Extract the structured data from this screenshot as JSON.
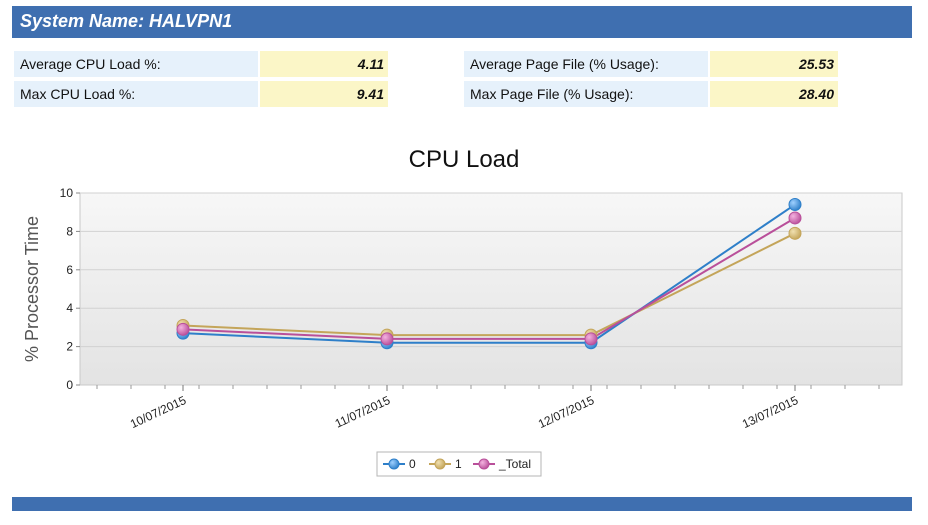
{
  "header": {
    "title": "System Name: HALVPN1"
  },
  "stats": {
    "avg_cpu": {
      "label": "Average CPU Load %:",
      "value": "4.11"
    },
    "max_cpu": {
      "label": "Max CPU Load %:",
      "value": "9.41"
    },
    "avg_page": {
      "label": "Average Page File (% Usage):",
      "value": "25.53"
    },
    "max_page": {
      "label": "Max Page File (% Usage):",
      "value": "28.40"
    }
  },
  "colors": {
    "header": "#3f6fb0",
    "series_0": "#2e7fc9",
    "series_1": "#c4a55a",
    "series_total": "#b94f9a"
  },
  "chart_data": {
    "type": "line",
    "title": "CPU Load",
    "xlabel": "",
    "ylabel": "% Processor Time",
    "categories": [
      "10/07/2015",
      "11/07/2015",
      "12/07/2015",
      "13/07/2015"
    ],
    "ylim": [
      0,
      10
    ],
    "yticks": [
      "0",
      "2",
      "4",
      "6",
      "8",
      "10"
    ],
    "grid": true,
    "legend": "bottom-center",
    "series": [
      {
        "name": "0",
        "values": [
          2.7,
          2.2,
          2.2,
          9.4
        ]
      },
      {
        "name": "1",
        "values": [
          3.1,
          2.6,
          2.6,
          7.9
        ]
      },
      {
        "name": "_Total",
        "values": [
          2.9,
          2.4,
          2.4,
          8.7
        ]
      }
    ]
  }
}
